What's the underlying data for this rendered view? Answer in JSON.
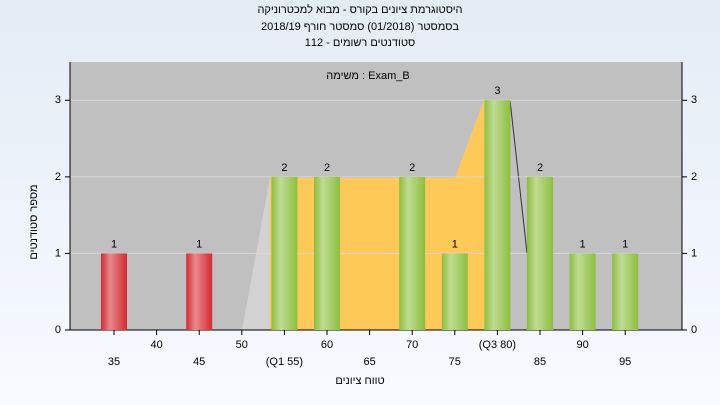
{
  "chart_data": {
    "type": "bar",
    "title": "היסטוגרמת ציונים בקורס - מבוא למכטרוניקה",
    "subtitle": "בסמסטר  (01/2018)  סמסטר חורף 2018/19",
    "subtitle2": "סטודנטים רשומים - 112",
    "annotation": "משימה : Exam_B",
    "x_label": "טווח ציונים",
    "y_label": "מספר סטודנטים",
    "categories": [
      "35",
      "40",
      "45",
      "50",
      "(Q1 55)",
      "60",
      "65",
      "70",
      "75",
      "(Q3 80)",
      "85",
      "90",
      "95"
    ],
    "values": [
      1,
      0,
      1,
      0,
      2,
      2,
      0,
      2,
      1,
      3,
      2,
      1,
      1
    ],
    "colors": [
      "#d42a30",
      "#d42a30",
      "#d42a30",
      "#d42a30",
      "#8cbf3c",
      "#8cbf3c",
      "#8cbf3c",
      "#8cbf3c",
      "#8cbf3c",
      "#8cbf3c",
      "#8cbf3c",
      "#8cbf3c",
      "#8cbf3c"
    ],
    "ylim": [
      0,
      3.5
    ],
    "yticks": [
      0,
      1,
      2,
      3
    ],
    "grid": true
  }
}
